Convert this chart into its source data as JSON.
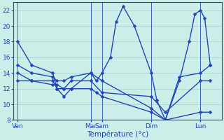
{
  "background_color": "#cceee8",
  "grid_color": "#aad4cc",
  "line_color": "#2244bb",
  "marker_color": "#2244bb",
  "xlabel": "Température (°c)",
  "xlabel_color": "#2244bb",
  "tick_color": "#2244bb",
  "ylim": [
    8,
    23
  ],
  "yticks": [
    8,
    10,
    12,
    14,
    16,
    18,
    20,
    22
  ],
  "day_labels": [
    "Ven",
    "Mar",
    "Sam",
    "Dim",
    "Lun"
  ],
  "day_positions": [
    0,
    5.2,
    6.0,
    9.5,
    13.0
  ],
  "xlim": [
    -0.3,
    14.5
  ],
  "s1_x": [
    0,
    1.0,
    2.5,
    2.8,
    3.3,
    3.8,
    5.2,
    5.6,
    6.0,
    6.6,
    7.0,
    7.5,
    8.3,
    9.5,
    9.9,
    10.5,
    11.5,
    12.2,
    12.6,
    13.0,
    13.3,
    13.7
  ],
  "s1_y": [
    18,
    15,
    14,
    12,
    11,
    12,
    14,
    13,
    14,
    16,
    20.5,
    22.5,
    20,
    14,
    10.5,
    8,
    13,
    18,
    21.5,
    22,
    21,
    15
  ],
  "s2_x": [
    0,
    1.0,
    2.5,
    2.8,
    3.3,
    3.8,
    5.2,
    6.0,
    9.5,
    10.5,
    11.5,
    13.0,
    13.7
  ],
  "s2_y": [
    15,
    14,
    13.5,
    13,
    13,
    13.5,
    14,
    13,
    9.5,
    8,
    13.5,
    14,
    15
  ],
  "s3_x": [
    0,
    1.0,
    2.5,
    2.8,
    3.3,
    3.8,
    5.2,
    6.0,
    9.5,
    10.5,
    13.0,
    13.7
  ],
  "s3_y": [
    14,
    13,
    13,
    12,
    12,
    13,
    13,
    11.5,
    11,
    9,
    13,
    13
  ],
  "s4_x": [
    0,
    1.0,
    2.5,
    2.8,
    3.3,
    3.8,
    5.2,
    5.6,
    6.0,
    9.5,
    10.5,
    13.0,
    13.7
  ],
  "s4_y": [
    13,
    13,
    12.5,
    12.5,
    12,
    12,
    12,
    11.5,
    11,
    9,
    8,
    9,
    9
  ],
  "lw": 1.0,
  "ms": 2.5
}
